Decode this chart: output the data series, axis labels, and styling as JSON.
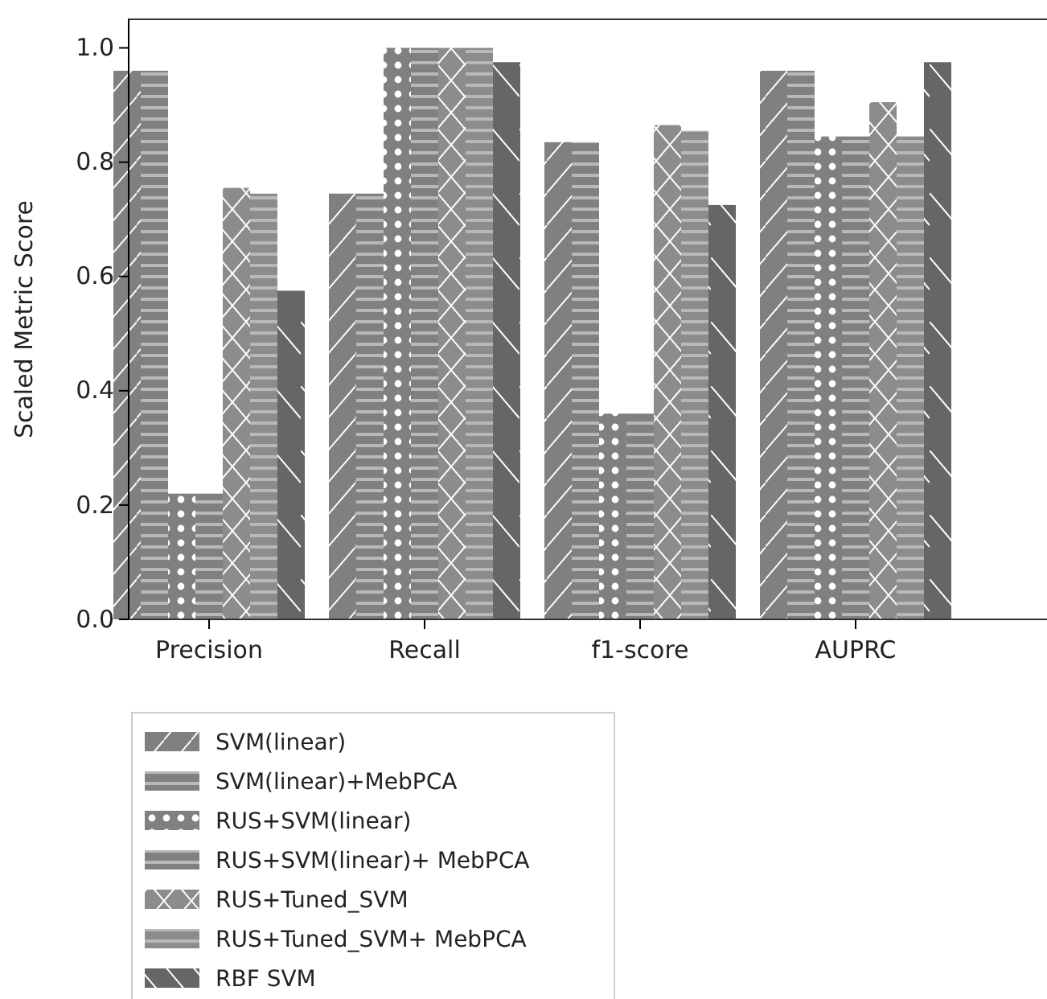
{
  "chart_data": {
    "type": "bar",
    "ylabel": "Scaled Metric Score",
    "categories": [
      "Precision",
      "Recall",
      "f1-score",
      "AUPRC"
    ],
    "ylim": [
      0,
      1.05
    ],
    "yticks": [
      {
        "value": 0,
        "label": "0.0"
      },
      {
        "value": 0.2,
        "label": "0.2"
      },
      {
        "value": 0.4,
        "label": "0.4"
      },
      {
        "value": 0.6,
        "label": "0.6"
      },
      {
        "value": 0.8,
        "label": "0.8"
      },
      {
        "value": 1,
        "label": "1.0"
      }
    ],
    "legend": "bottom left",
    "grid": false,
    "series": [
      {
        "name": "SVM(linear)",
        "color": "#808080",
        "values": [
          0.96,
          0.745,
          0.835,
          0.96
        ]
      },
      {
        "name": "SVM(linear)+MebPCA",
        "color": "#808080",
        "values": [
          0.96,
          0.745,
          0.835,
          0.96
        ]
      },
      {
        "name": "RUS+SVM(linear)",
        "color": "#808080",
        "values": [
          0.22,
          1.0,
          0.36,
          0.845
        ]
      },
      {
        "name": "RUS+SVM(linear)+ MebPCA",
        "color": "#808080",
        "values": [
          0.22,
          1.0,
          0.36,
          0.845
        ]
      },
      {
        "name": "RUS+Tuned_SVM",
        "color": "#8c8c8c",
        "values": [
          0.755,
          1.0,
          0.865,
          0.905
        ]
      },
      {
        "name": "RUS+Tuned_SVM+ MebPCA",
        "color": "#8c8c8c",
        "values": [
          0.745,
          1.0,
          0.855,
          0.845
        ]
      },
      {
        "name": "RBF SVM",
        "color": "#666666",
        "values": [
          0.575,
          0.975,
          0.725,
          0.975
        ]
      }
    ]
  }
}
